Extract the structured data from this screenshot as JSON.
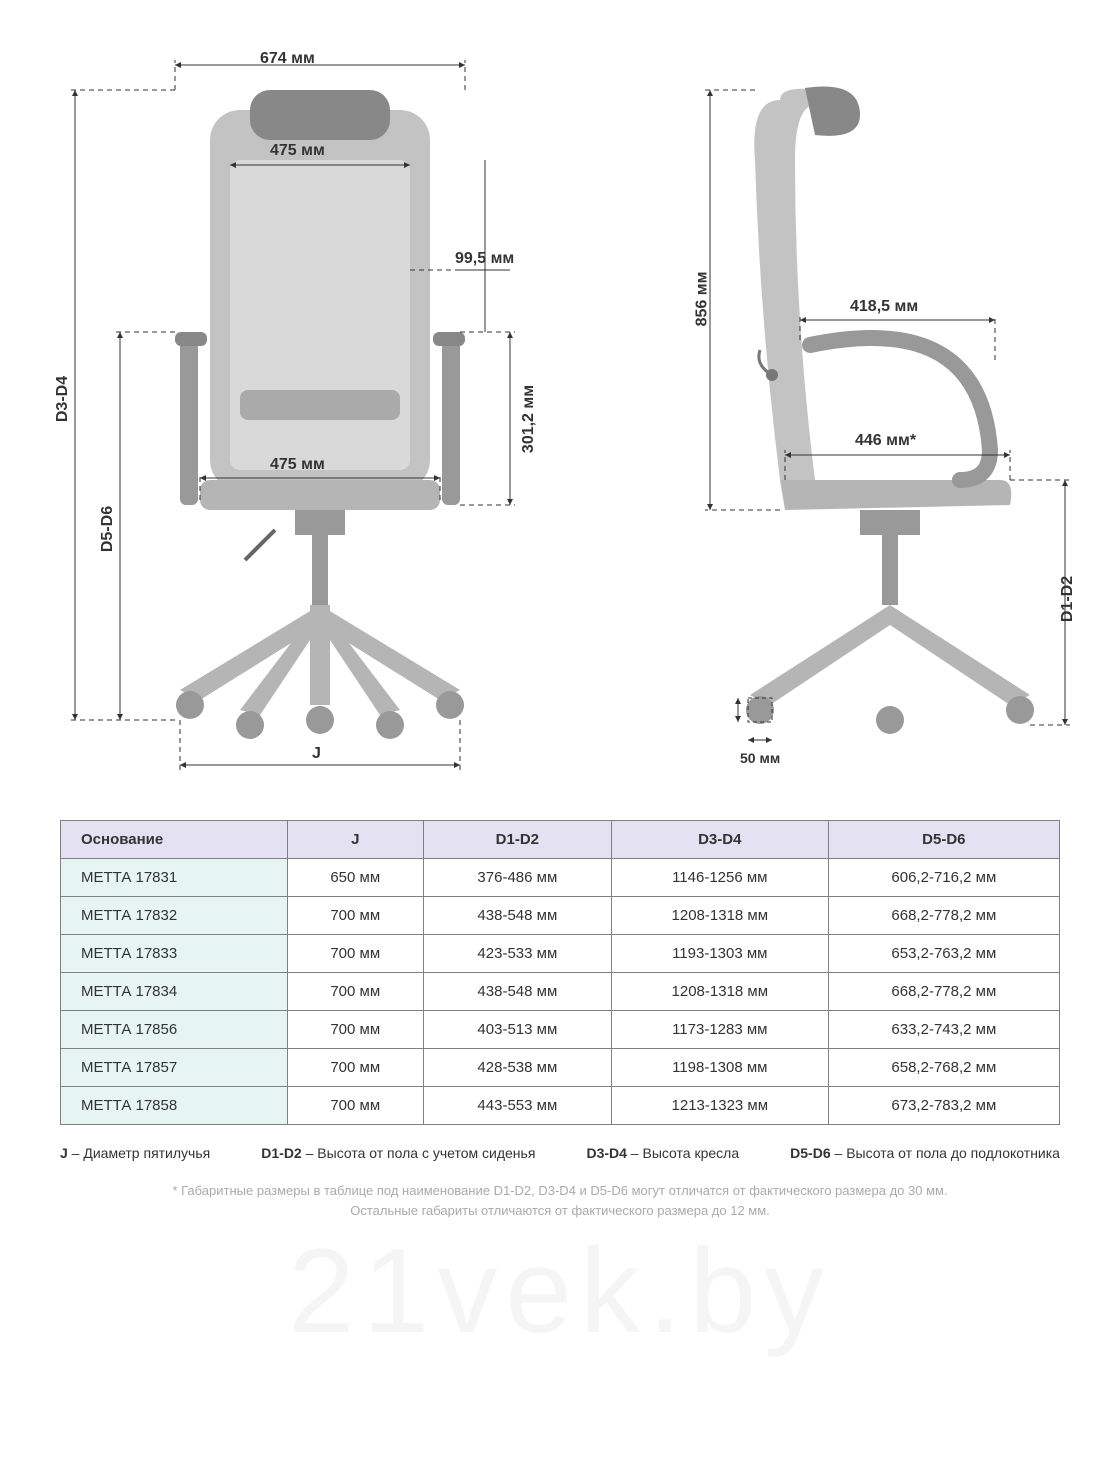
{
  "colors": {
    "bg": "#ffffff",
    "chair_fill": "#c3c3c3",
    "chair_stroke": "#666666",
    "dim_line": "#333333",
    "dash": "5,4",
    "text": "#333333",
    "table_border": "#808080",
    "header_bg": "#e4e1f2",
    "firstcol_bg": "#e6f4f4",
    "footnote": "#aaaaaa",
    "watermark": "rgba(0,0,0,0.04)"
  },
  "front": {
    "dims": {
      "top_width": "674 мм",
      "back_width": "475 мм",
      "seat_width": "475 мм",
      "arm_gap": "99,5 мм",
      "arm_height": "301,2 мм",
      "left_total": "D3-D4",
      "left_arm": "D5-D6",
      "base_span": "J"
    }
  },
  "side": {
    "dims": {
      "back_height": "856 мм",
      "arm_reach": "418,5 мм",
      "seat_depth": "446 мм*",
      "right_seat_h": "D1-D2",
      "caster": "50 мм"
    }
  },
  "table": {
    "columns": [
      "Основание",
      "J",
      "D1-D2",
      "D3-D4",
      "D5-D6"
    ],
    "rows": [
      [
        "МЕТТА 17831",
        "650 мм",
        "376-486 мм",
        "1146-1256 мм",
        "606,2-716,2 мм"
      ],
      [
        "МЕТТА 17832",
        "700 мм",
        "438-548 мм",
        "1208-1318 мм",
        "668,2-778,2 мм"
      ],
      [
        "МЕТТА 17833",
        "700 мм",
        "423-533 мм",
        "1193-1303 мм",
        "653,2-763,2 мм"
      ],
      [
        "МЕТТА 17834",
        "700 мм",
        "438-548 мм",
        "1208-1318 мм",
        "668,2-778,2 мм"
      ],
      [
        "МЕТТА 17856",
        "700 мм",
        "403-513 мм",
        "1173-1283 мм",
        "633,2-743,2 мм"
      ],
      [
        "МЕТТА 17857",
        "700 мм",
        "428-538 мм",
        "1198-1308 мм",
        "658,2-768,2 мм"
      ],
      [
        "МЕТТА 17858",
        "700 мм",
        "443-553 мм",
        "1213-1323 мм",
        "673,2-783,2 мм"
      ]
    ]
  },
  "legend": [
    {
      "code": "J",
      "desc": "Диаметр пятилучья"
    },
    {
      "code": "D1-D2",
      "desc": "Высота от пола с учетом сиденья"
    },
    {
      "code": "D3-D4",
      "desc": "Высота кресла"
    },
    {
      "code": "D5-D6",
      "desc": "Высота от пола до подлокотника"
    }
  ],
  "footnotes": [
    "* Габаритные размеры в таблице под наименование D1-D2, D3-D4 и D5-D6 могут отличатся от фактического размера до 30 мм.",
    "Остальные габариты отличаются от фактического размера до 12 мм."
  ],
  "watermark": "21vek.by"
}
